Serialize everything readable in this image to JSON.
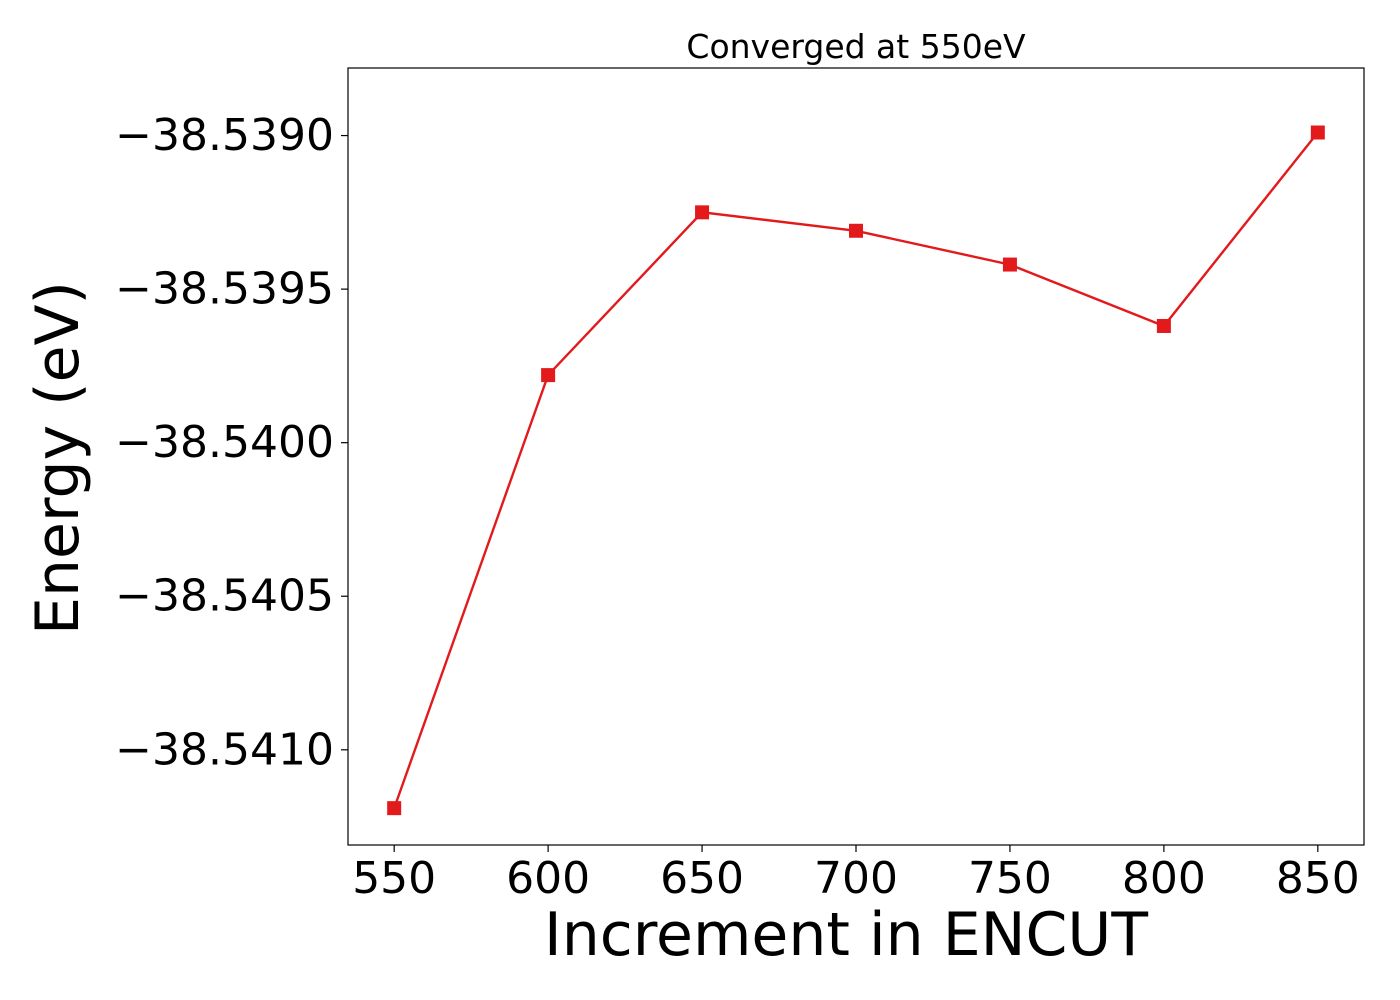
{
  "chart_data": {
    "type": "line",
    "title": "Converged at 550eV",
    "xlabel": "Increment in ENCUT",
    "ylabel": "Energy (eV)",
    "x": [
      550,
      600,
      650,
      700,
      750,
      800,
      850
    ],
    "series": [
      {
        "values": [
          -38.54119,
          -38.53978,
          -38.53925,
          -38.53931,
          -38.53942,
          -38.53962,
          -38.53899
        ],
        "color": "#e31a1c",
        "marker": "square"
      }
    ],
    "xlim": [
      535,
      865
    ],
    "ylim": [
      -38.54131,
      -38.53878
    ],
    "xticks": [
      550,
      600,
      650,
      700,
      750,
      800,
      850
    ],
    "xtick_labels": [
      "550",
      "600",
      "650",
      "700",
      "750",
      "800",
      "850"
    ],
    "yticks": [
      -38.539,
      -38.5395,
      -38.54,
      -38.5405,
      -38.541
    ],
    "ytick_labels": [
      "−38.5390",
      "−38.5395",
      "−38.5400",
      "−38.5405",
      "−38.5410"
    ],
    "grid": false,
    "legend": "none"
  }
}
